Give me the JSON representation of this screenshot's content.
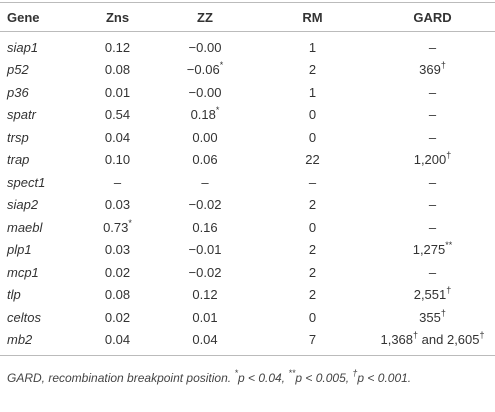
{
  "table": {
    "columns": [
      "Gene",
      "Zns",
      "ZZ",
      "RM",
      "GARD"
    ],
    "rows": [
      [
        "siap1",
        "0.12",
        "−0.00",
        "1",
        "–"
      ],
      [
        "p52",
        "0.08",
        "−0.06*",
        "2",
        "369†"
      ],
      [
        "p36",
        "0.01",
        "−0.00",
        "1",
        "–"
      ],
      [
        "spatr",
        "0.54",
        "0.18*",
        "0",
        "–"
      ],
      [
        "trsp",
        "0.04",
        "0.00",
        "0",
        "–"
      ],
      [
        "trap",
        "0.10",
        "0.06",
        "22",
        "1,200†"
      ],
      [
        "spect1",
        "–",
        "–",
        "–",
        "–"
      ],
      [
        "siap2",
        "0.03",
        "−0.02",
        "2",
        "–"
      ],
      [
        "maebl",
        "0.73*",
        "0.16",
        "0",
        "–"
      ],
      [
        "plp1",
        "0.03",
        "−0.01",
        "2",
        "1,275**"
      ],
      [
        "mcp1",
        "0.02",
        "−0.02",
        "2",
        "–"
      ],
      [
        "tlp",
        "0.08",
        "0.12",
        "2",
        "2,551†"
      ],
      [
        "celtos",
        "0.02",
        "0.01",
        "0",
        "355†"
      ],
      [
        "mb2",
        "0.04",
        "0.04",
        "7",
        "1,368† and 2,605†"
      ]
    ],
    "footnote": "GARD, recombination breakpoint position. *p < 0.04, **p < 0.005, †p < 0.001."
  }
}
